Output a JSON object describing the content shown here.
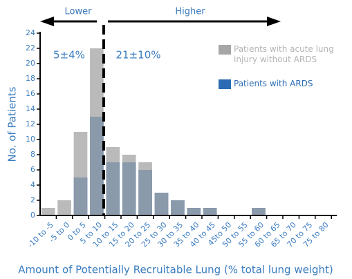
{
  "chart_data": {
    "type": "bar",
    "y_label": "No. of Patients",
    "x_label": "Amount of Potentially Recruitable Lung (% total lung weight)",
    "annotations": {
      "lower": "Lower",
      "higher": "Higher",
      "lower_value": "5±4%",
      "higher_value": "21±10%"
    },
    "categories": [
      "-10 to -5",
      "-5 to 0",
      "0 to 5",
      "5 to 10",
      "10 to 15",
      "15 to 20",
      "20 to 25",
      "25 to 30",
      "30 to 35",
      "35 to 40",
      "40 to 45",
      "45to 50",
      "50 to 55",
      "55 to 60",
      "60 to 65",
      "65 to 70",
      "70 to 75",
      "75 to 80"
    ],
    "series": [
      {
        "name": "Patients with ARDS",
        "color": "#2b6cb5",
        "values": [
          0,
          0,
          5,
          13,
          7,
          7,
          6,
          3,
          2,
          1,
          1,
          0,
          0,
          1,
          0,
          0,
          0,
          0
        ]
      },
      {
        "name": "Patients with acute lung injury without ARDS",
        "color": "#a6a6a6",
        "values": [
          1,
          2,
          11,
          22,
          9,
          8,
          7,
          3,
          2,
          1,
          1,
          0,
          0,
          1,
          0,
          0,
          0,
          0
        ]
      }
    ],
    "ylim": [
      0,
      24
    ],
    "yticks": [
      0,
      2,
      4,
      6,
      8,
      10,
      12,
      14,
      16,
      18,
      20,
      22,
      24
    ]
  }
}
